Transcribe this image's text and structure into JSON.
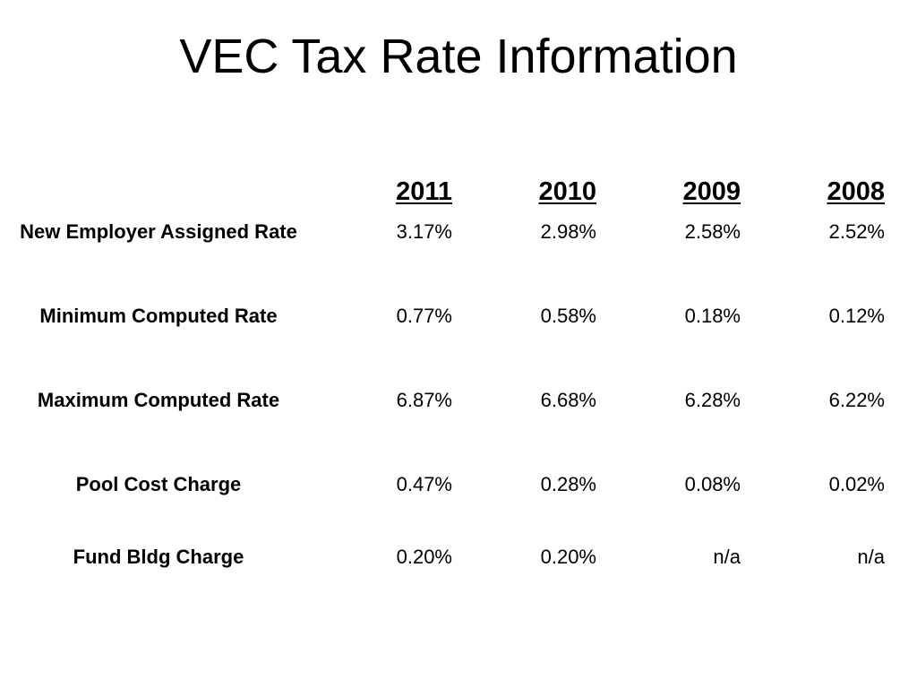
{
  "title": "VEC Tax Rate Information",
  "table": {
    "years": [
      "2011",
      "2010",
      "2009",
      "2008"
    ],
    "rows": [
      {
        "label": "New Employer Assigned Rate",
        "values": [
          "3.17%",
          "2.98%",
          "2.58%",
          "2.52%"
        ]
      },
      {
        "label": "Minimum Computed Rate",
        "values": [
          "0.77%",
          "0.58%",
          "0.18%",
          "0.12%"
        ]
      },
      {
        "label": "Maximum Computed Rate",
        "values": [
          "6.87%",
          "6.68%",
          "6.28%",
          "6.22%"
        ]
      },
      {
        "label": "Pool Cost Charge",
        "values": [
          "0.47%",
          "0.28%",
          "0.08%",
          "0.02%"
        ]
      },
      {
        "label": "Fund Bldg Charge",
        "values": [
          "0.20%",
          "0.20%",
          "n/a",
          "n/a"
        ]
      }
    ]
  }
}
